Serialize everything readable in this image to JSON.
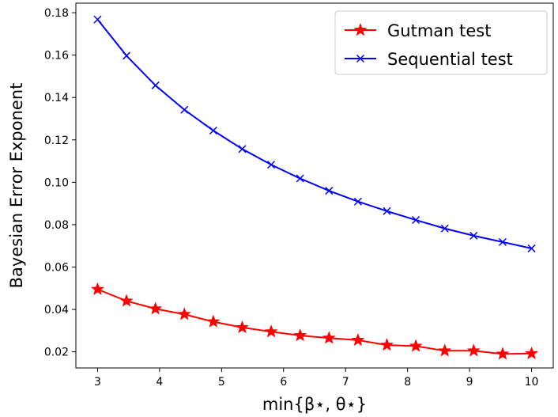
{
  "chart_data": {
    "type": "line",
    "title": "",
    "xlabel": "min{β⋆, θ⋆}",
    "ylabel": "Bayesian Error Exponent",
    "xlim": [
      2.65,
      10.35
    ],
    "ylim": [
      0.0124,
      0.1845
    ],
    "xticks": [
      3,
      4,
      5,
      6,
      7,
      8,
      9,
      10
    ],
    "yticks": [
      0.02,
      0.04,
      0.06,
      0.08,
      0.1,
      0.12,
      0.14,
      0.16,
      0.18
    ],
    "ytick_labels": [
      "0.02",
      "0.04",
      "0.06",
      "0.08",
      "0.10",
      "0.12",
      "0.14",
      "0.16",
      "0.18"
    ],
    "grid": false,
    "legend_position": "top-right",
    "x": [
      3.0,
      3.4667,
      3.9333,
      4.4,
      4.8667,
      5.3333,
      5.8,
      6.2667,
      6.7333,
      7.2,
      7.6667,
      8.1333,
      8.6,
      9.0667,
      9.5333,
      10.0
    ],
    "series": [
      {
        "name": "Gutman test",
        "color": "#ff0000",
        "marker": "star",
        "values": [
          0.0495,
          0.044,
          0.0403,
          0.0377,
          0.0342,
          0.0315,
          0.0295,
          0.0277,
          0.0265,
          0.0255,
          0.0232,
          0.0227,
          0.0205,
          0.0205,
          0.019,
          0.0192
        ]
      },
      {
        "name": "Sequential test",
        "color": "#0000ff",
        "marker": "x",
        "values": [
          0.1768,
          0.1597,
          0.1457,
          0.1342,
          0.1244,
          0.1157,
          0.1083,
          0.1018,
          0.096,
          0.0909,
          0.0864,
          0.0822,
          0.0782,
          0.0748,
          0.0718,
          0.0688
        ]
      }
    ]
  }
}
